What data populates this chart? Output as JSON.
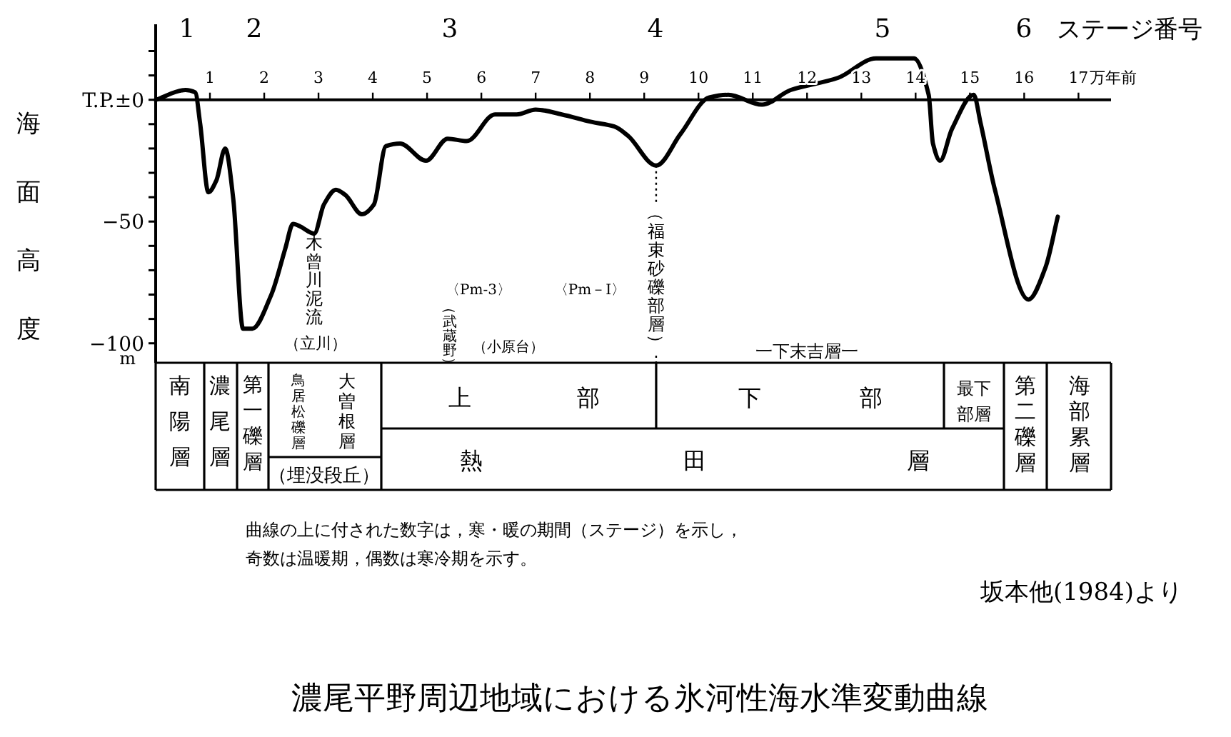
{
  "chart_data": {
    "type": "line",
    "title": "濃尾平野周辺地域における氷河性海水準変動曲線",
    "ylabel": "海面高度",
    "xlabel": "万年前",
    "x2label": "ステージ番号",
    "x": [
      0,
      0.55,
      0.73,
      0.82,
      0.97,
      1.12,
      1.28,
      1.43,
      1.61,
      1.78,
      2.13,
      2.39,
      2.53,
      2.66,
      2.92,
      3.1,
      3.32,
      3.49,
      3.8,
      4.02,
      4.24,
      4.5,
      4.98,
      5.38,
      5.73,
      6.25,
      6.65,
      7.0,
      7.48,
      8.01,
      8.45,
      8.71,
      9.22,
      9.67,
      10.2,
      10.55,
      11.17,
      11.7,
      12.57,
      13.27,
      13.97,
      14.24,
      14.32,
      14.45,
      14.67,
      15.07,
      15.2,
      15.46,
      16.08,
      16.39,
      16.62
    ],
    "values": [
      0,
      4,
      3,
      -10,
      -38,
      -33,
      -20,
      -41,
      -94,
      -94,
      -80,
      -61,
      -51,
      -52,
      -55,
      -43,
      -37,
      -39,
      -47,
      -43,
      -19,
      -18,
      -25,
      -16,
      -17,
      -6,
      -6,
      -4,
      -6,
      -9,
      -11,
      -15,
      -27,
      -14,
      1,
      2,
      -2,
      4,
      9,
      17,
      17,
      2,
      -18,
      -25,
      -12,
      2,
      -10,
      -37,
      -82,
      -69,
      -48
    ],
    "color": "#000000",
    "line_style": "solid",
    "marker": "none",
    "xlim": [
      0,
      17.6
    ],
    "xticks": [
      1,
      2,
      3,
      4,
      5,
      6,
      7,
      8,
      9,
      10,
      11,
      12,
      13,
      14,
      15,
      16,
      17
    ],
    "ylim": [
      -108,
      31
    ],
    "yticks": [
      {
        "value": 20,
        "label": null
      },
      {
        "value": 10,
        "label": null
      },
      {
        "value": 0,
        "label": "T.P.±0"
      },
      {
        "value": -10,
        "label": null
      },
      {
        "value": -20,
        "label": null
      },
      {
        "value": -30,
        "label": null
      },
      {
        "value": -40,
        "label": null
      },
      {
        "value": -50,
        "label": "−50"
      },
      {
        "value": -60,
        "label": null
      },
      {
        "value": -70,
        "label": null
      },
      {
        "value": -80,
        "label": null
      },
      {
        "value": -90,
        "label": null
      },
      {
        "value": -100,
        "label": "−100"
      }
    ],
    "grid": false,
    "annotations": [
      {
        "text": "木曾川泥流",
        "x": 2.92,
        "y": -55
      },
      "（立川）",
      "〈Pm-3〉",
      "（武蔵野）",
      "（小原台）",
      "〈Pm－I〉",
      {
        "text": "（福束砂礫部層）",
        "x": 9.22,
        "y": -27
      },
      "一下末吉層一",
      "南陽層",
      "濃尾層",
      "第一礫層",
      "鳥居松礫層",
      "大曽根層",
      "（埋没段丘）",
      "上部",
      "下部",
      "最下部層",
      "熱田層",
      "第二礫層",
      "海部累層",
      "曲線の上に付された数字は，寒・暖の期間（ステージ）を示し，",
      "奇数は温暖期，偶数は寒冷期を示す。",
      "坂本他(1984)より",
      "m",
      "1",
      "2",
      "3",
      "4",
      "5",
      "6"
    ]
  }
}
